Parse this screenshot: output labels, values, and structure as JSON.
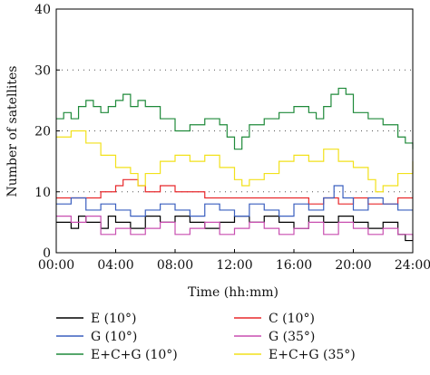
{
  "chart_data": {
    "type": "line",
    "xlabel": "Time (hh:mm)",
    "ylabel": "Number of satellites",
    "xlim": [
      0,
      24
    ],
    "ylim": [
      0,
      40
    ],
    "x_ticks": [
      0,
      4,
      8,
      12,
      16,
      20,
      24
    ],
    "x_tick_labels": [
      "00:00",
      "04:00",
      "08:00",
      "12:00",
      "16:00",
      "20:00",
      "24:00"
    ],
    "y_ticks": [
      0,
      10,
      20,
      30,
      40
    ],
    "y_tick_labels": [
      "0",
      "10",
      "20",
      "30",
      "40"
    ],
    "grid": "horizontal dotted",
    "legend_placement": "bottom",
    "series": [
      {
        "name": "E (10°)",
        "color": "#000000",
        "points": [
          [
            0,
            5
          ],
          [
            1,
            4
          ],
          [
            1.5,
            6
          ],
          [
            2,
            5
          ],
          [
            3,
            4
          ],
          [
            3.5,
            6
          ],
          [
            4,
            5
          ],
          [
            5,
            4
          ],
          [
            6,
            6
          ],
          [
            7,
            5
          ],
          [
            8,
            6
          ],
          [
            9,
            5
          ],
          [
            10,
            4
          ],
          [
            11,
            5
          ],
          [
            12,
            6
          ],
          [
            13,
            5
          ],
          [
            14,
            6
          ],
          [
            15,
            5
          ],
          [
            16,
            4
          ],
          [
            17,
            6
          ],
          [
            18,
            5
          ],
          [
            19,
            6
          ],
          [
            20,
            5
          ],
          [
            21,
            4
          ],
          [
            22,
            5
          ],
          [
            23,
            3
          ],
          [
            23.5,
            2
          ],
          [
            24,
            2
          ]
        ]
      },
      {
        "name": "C (10°)",
        "color": "#e8282b",
        "points": [
          [
            0,
            9
          ],
          [
            2,
            9
          ],
          [
            3,
            10
          ],
          [
            4,
            11
          ],
          [
            4.5,
            12
          ],
          [
            5.5,
            11
          ],
          [
            6,
            10
          ],
          [
            7,
            11
          ],
          [
            8,
            10
          ],
          [
            9,
            10
          ],
          [
            10,
            9
          ],
          [
            11,
            9
          ],
          [
            12,
            9
          ],
          [
            13,
            9
          ],
          [
            14,
            9
          ],
          [
            15,
            9
          ],
          [
            16,
            9
          ],
          [
            17,
            8
          ],
          [
            18,
            9
          ],
          [
            19,
            8
          ],
          [
            20,
            9
          ],
          [
            21,
            8
          ],
          [
            22,
            8
          ],
          [
            23,
            9
          ],
          [
            24,
            9
          ]
        ]
      },
      {
        "name": "G (10°)",
        "color": "#3a5fbf",
        "points": [
          [
            0,
            8
          ],
          [
            1,
            9
          ],
          [
            2,
            7
          ],
          [
            3,
            8
          ],
          [
            4,
            7
          ],
          [
            5,
            6
          ],
          [
            6,
            7
          ],
          [
            7,
            8
          ],
          [
            8,
            7
          ],
          [
            9,
            6
          ],
          [
            10,
            8
          ],
          [
            11,
            7
          ],
          [
            12,
            6
          ],
          [
            13,
            8
          ],
          [
            14,
            7
          ],
          [
            15,
            6
          ],
          [
            16,
            8
          ],
          [
            17,
            7
          ],
          [
            18,
            9
          ],
          [
            18.7,
            11
          ],
          [
            19.3,
            9
          ],
          [
            20,
            7
          ],
          [
            21,
            9
          ],
          [
            22,
            8
          ],
          [
            23,
            7
          ],
          [
            24,
            7
          ]
        ]
      },
      {
        "name": "G (35°)",
        "color": "#c84fb0",
        "points": [
          [
            0,
            6
          ],
          [
            1,
            5
          ],
          [
            2,
            6
          ],
          [
            3,
            3
          ],
          [
            4,
            4
          ],
          [
            5,
            3
          ],
          [
            6,
            4
          ],
          [
            7,
            5
          ],
          [
            8,
            3
          ],
          [
            9,
            4
          ],
          [
            10,
            5
          ],
          [
            11,
            3
          ],
          [
            12,
            4
          ],
          [
            13,
            5
          ],
          [
            14,
            4
          ],
          [
            15,
            3
          ],
          [
            16,
            4
          ],
          [
            17,
            5
          ],
          [
            18,
            3
          ],
          [
            19,
            5
          ],
          [
            20,
            4
          ],
          [
            21,
            3
          ],
          [
            22,
            4
          ],
          [
            23,
            3
          ],
          [
            24,
            2
          ]
        ]
      },
      {
        "name": "E+C+G (10°)",
        "color": "#1f8a3a",
        "points": [
          [
            0,
            22
          ],
          [
            0.5,
            23
          ],
          [
            1,
            22
          ],
          [
            1.5,
            24
          ],
          [
            2,
            25
          ],
          [
            2.5,
            24
          ],
          [
            3,
            23
          ],
          [
            3.5,
            24
          ],
          [
            4,
            25
          ],
          [
            4.5,
            26
          ],
          [
            5,
            24
          ],
          [
            5.5,
            25
          ],
          [
            6,
            24
          ],
          [
            7,
            22
          ],
          [
            8,
            20
          ],
          [
            9,
            21
          ],
          [
            10,
            22
          ],
          [
            11,
            21
          ],
          [
            11.5,
            19
          ],
          [
            12,
            17
          ],
          [
            12.5,
            19
          ],
          [
            13,
            21
          ],
          [
            14,
            22
          ],
          [
            15,
            23
          ],
          [
            16,
            24
          ],
          [
            17,
            23
          ],
          [
            17.5,
            22
          ],
          [
            18,
            24
          ],
          [
            18.5,
            26
          ],
          [
            19,
            27
          ],
          [
            19.5,
            26
          ],
          [
            20,
            23
          ],
          [
            21,
            22
          ],
          [
            22,
            21
          ],
          [
            23,
            19
          ],
          [
            23.5,
            18
          ],
          [
            24,
            17
          ]
        ]
      },
      {
        "name": "E+C+G (35°)",
        "color": "#f2e11a",
        "points": [
          [
            0,
            19
          ],
          [
            1,
            20
          ],
          [
            2,
            18
          ],
          [
            3,
            16
          ],
          [
            4,
            14
          ],
          [
            5,
            13
          ],
          [
            5.5,
            11
          ],
          [
            6,
            13
          ],
          [
            7,
            15
          ],
          [
            8,
            16
          ],
          [
            9,
            15
          ],
          [
            10,
            16
          ],
          [
            11,
            14
          ],
          [
            12,
            12
          ],
          [
            12.5,
            11
          ],
          [
            13,
            12
          ],
          [
            14,
            13
          ],
          [
            15,
            15
          ],
          [
            16,
            16
          ],
          [
            17,
            15
          ],
          [
            18,
            17
          ],
          [
            19,
            15
          ],
          [
            20,
            14
          ],
          [
            21,
            12
          ],
          [
            21.5,
            10
          ],
          [
            22,
            11
          ],
          [
            23,
            13
          ],
          [
            24,
            15
          ]
        ]
      }
    ]
  }
}
